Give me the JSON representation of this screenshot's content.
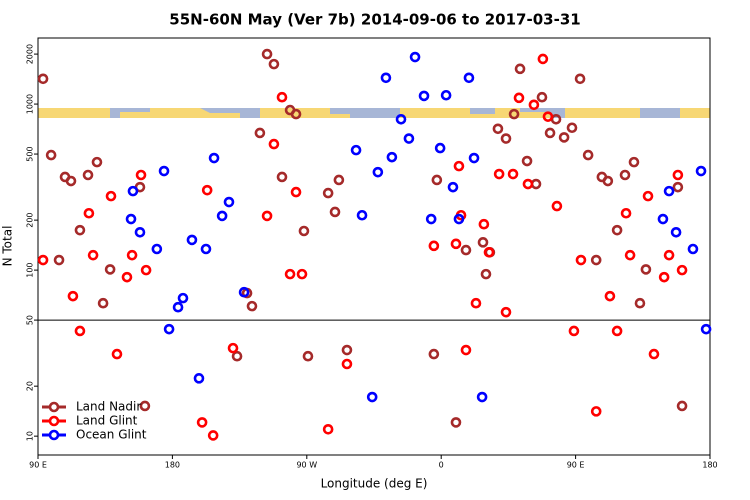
{
  "chart_data": {
    "type": "scatter",
    "title": "55N-60N May (Ver 7b)   2014-09-06 to 2017-03-31",
    "xlabel": "Longitude (deg E)",
    "ylabel": "N Total",
    "xlim": [
      90,
      540
    ],
    "ylim": [
      7.7,
      2500
    ],
    "log_y": true,
    "xticks": [
      {
        "value": 90,
        "label": "90 E"
      },
      180,
      {
        "value": 270,
        "label": "90 W"
      },
      {
        "value": 360,
        "label": "0"
      },
      {
        "value": 450,
        "label": "90 E"
      },
      {
        "value": 540,
        "label": "180"
      }
    ],
    "yticks": [
      10,
      20,
      50,
      100,
      200,
      500,
      1000,
      2000
    ],
    "hline": 50,
    "legend": "lower left",
    "series": [
      {
        "name": "Land Nadir",
        "color": "#a52a2a",
        "x": [
          93.4,
          98.8,
          104.1,
          108.1,
          112.1,
          118.1,
          123.5,
          129.5,
          133.6,
          138.3,
          158.3,
          161.6,
          230,
          233.3,
          223.3,
          238.6,
          243.4,
          248,
          253.4,
          258.8,
          262.8,
          268.1,
          270.8,
          284.3,
          288.9,
          291.5,
          296.9,
          357.1,
          355.1,
          369.9,
          376.6,
          388,
          390,
          392.6,
          398,
          403.4,
          408.8,
          412.8,
          417.5,
          423.5,
          427.5,
          432.9,
          436.9,
          442.3,
          447.6,
          453,
          458.4,
          463.8,
          467.6,
          471.6,
          477.8,
          483.1,
          489.1,
          493.1,
          497.1,
          518.5,
          521.3
        ],
        "values": [
          1420,
          493,
          115,
          364,
          344,
          174,
          374,
          447,
          63.2,
          101,
          316,
          15.2,
          72.7,
          60.7,
          30.3,
          670,
          2000,
          1740,
          364,
          920,
          870,
          172,
          30.3,
          291,
          224,
          349,
          33.0,
          349,
          31.2,
          12.1,
          132,
          147,
          94.6,
          128,
          710,
          620,
          870,
          1630,
          454,
          330,
          1100,
          670,
          810,
          630,
          720,
          1420,
          493,
          115,
          364,
          344,
          174,
          374,
          447,
          63.2,
          101,
          316,
          15.2
        ]
      },
      {
        "name": "Land Glint",
        "color": "#ff0000",
        "x": [
          93.4,
          113.4,
          118.1,
          124.1,
          126.9,
          138.9,
          142.9,
          149.6,
          153,
          159,
          162.4,
          199.9,
          203.3,
          207.3,
          220.6,
          243.4,
          248,
          253.4,
          258.8,
          262.8,
          266.8,
          284.3,
          296.9,
          355.1,
          369.9,
          371.9,
          373.3,
          376.6,
          383.3,
          388.6,
          392,
          398.8,
          403.4,
          408.1,
          412.1,
          418.1,
          422.1,
          428.1,
          431.5,
          437.5,
          448.9,
          453.6,
          463.8,
          473,
          477.8,
          483.8,
          486.5,
          498.5,
          502.5,
          509.3,
          512.6,
          518.5,
          521.3
        ],
        "values": [
          115,
          69.7,
          43.0,
          220,
          123,
          279,
          31.2,
          90.7,
          123,
          374,
          100,
          12.1,
          303,
          10.1,
          33.9,
          212,
          574,
          1100,
          94.6,
          295,
          94.6,
          11.0,
          27.2,
          140,
          144,
          423,
          214,
          33.0,
          63.2,
          189,
          128,
          379,
          55.8,
          379,
          1090,
          330,
          990,
          1870,
          840,
          243,
          43.0,
          115,
          14.1,
          69.7,
          43.0,
          220,
          123,
          279,
          31.2,
          90.7,
          123,
          374,
          100
        ]
      },
      {
        "name": "Ocean Glint",
        "color": "#0000ff",
        "x": [
          152.3,
          153.6,
          158.3,
          169.6,
          174.4,
          177.8,
          183.8,
          187.1,
          193.1,
          197.8,
          202.5,
          207.9,
          213.3,
          217.9,
          228,
          303,
          307,
          313.8,
          317.6,
          323,
          327,
          333.1,
          338.4,
          342.5,
          348.5,
          353.3,
          359.3,
          363.3,
          367.9,
          371.9,
          378.6,
          382,
          387.4,
          508.5,
          512.6,
          517.3,
          528.6,
          534,
          537.4
        ],
        "values": [
          203,
          299,
          169,
          134,
          395,
          44.1,
          59.8,
          67.8,
          152,
          22.3,
          134,
          473,
          212,
          257,
          73.6,
          528,
          214,
          17.2,
          389,
          1440,
          479,
          810,
          620,
          1920,
          1120,
          203,
          543,
          1130,
          316,
          203,
          1440,
          473,
          17.2,
          203,
          299,
          169,
          134,
          395,
          44.1
        ]
      }
    ]
  }
}
